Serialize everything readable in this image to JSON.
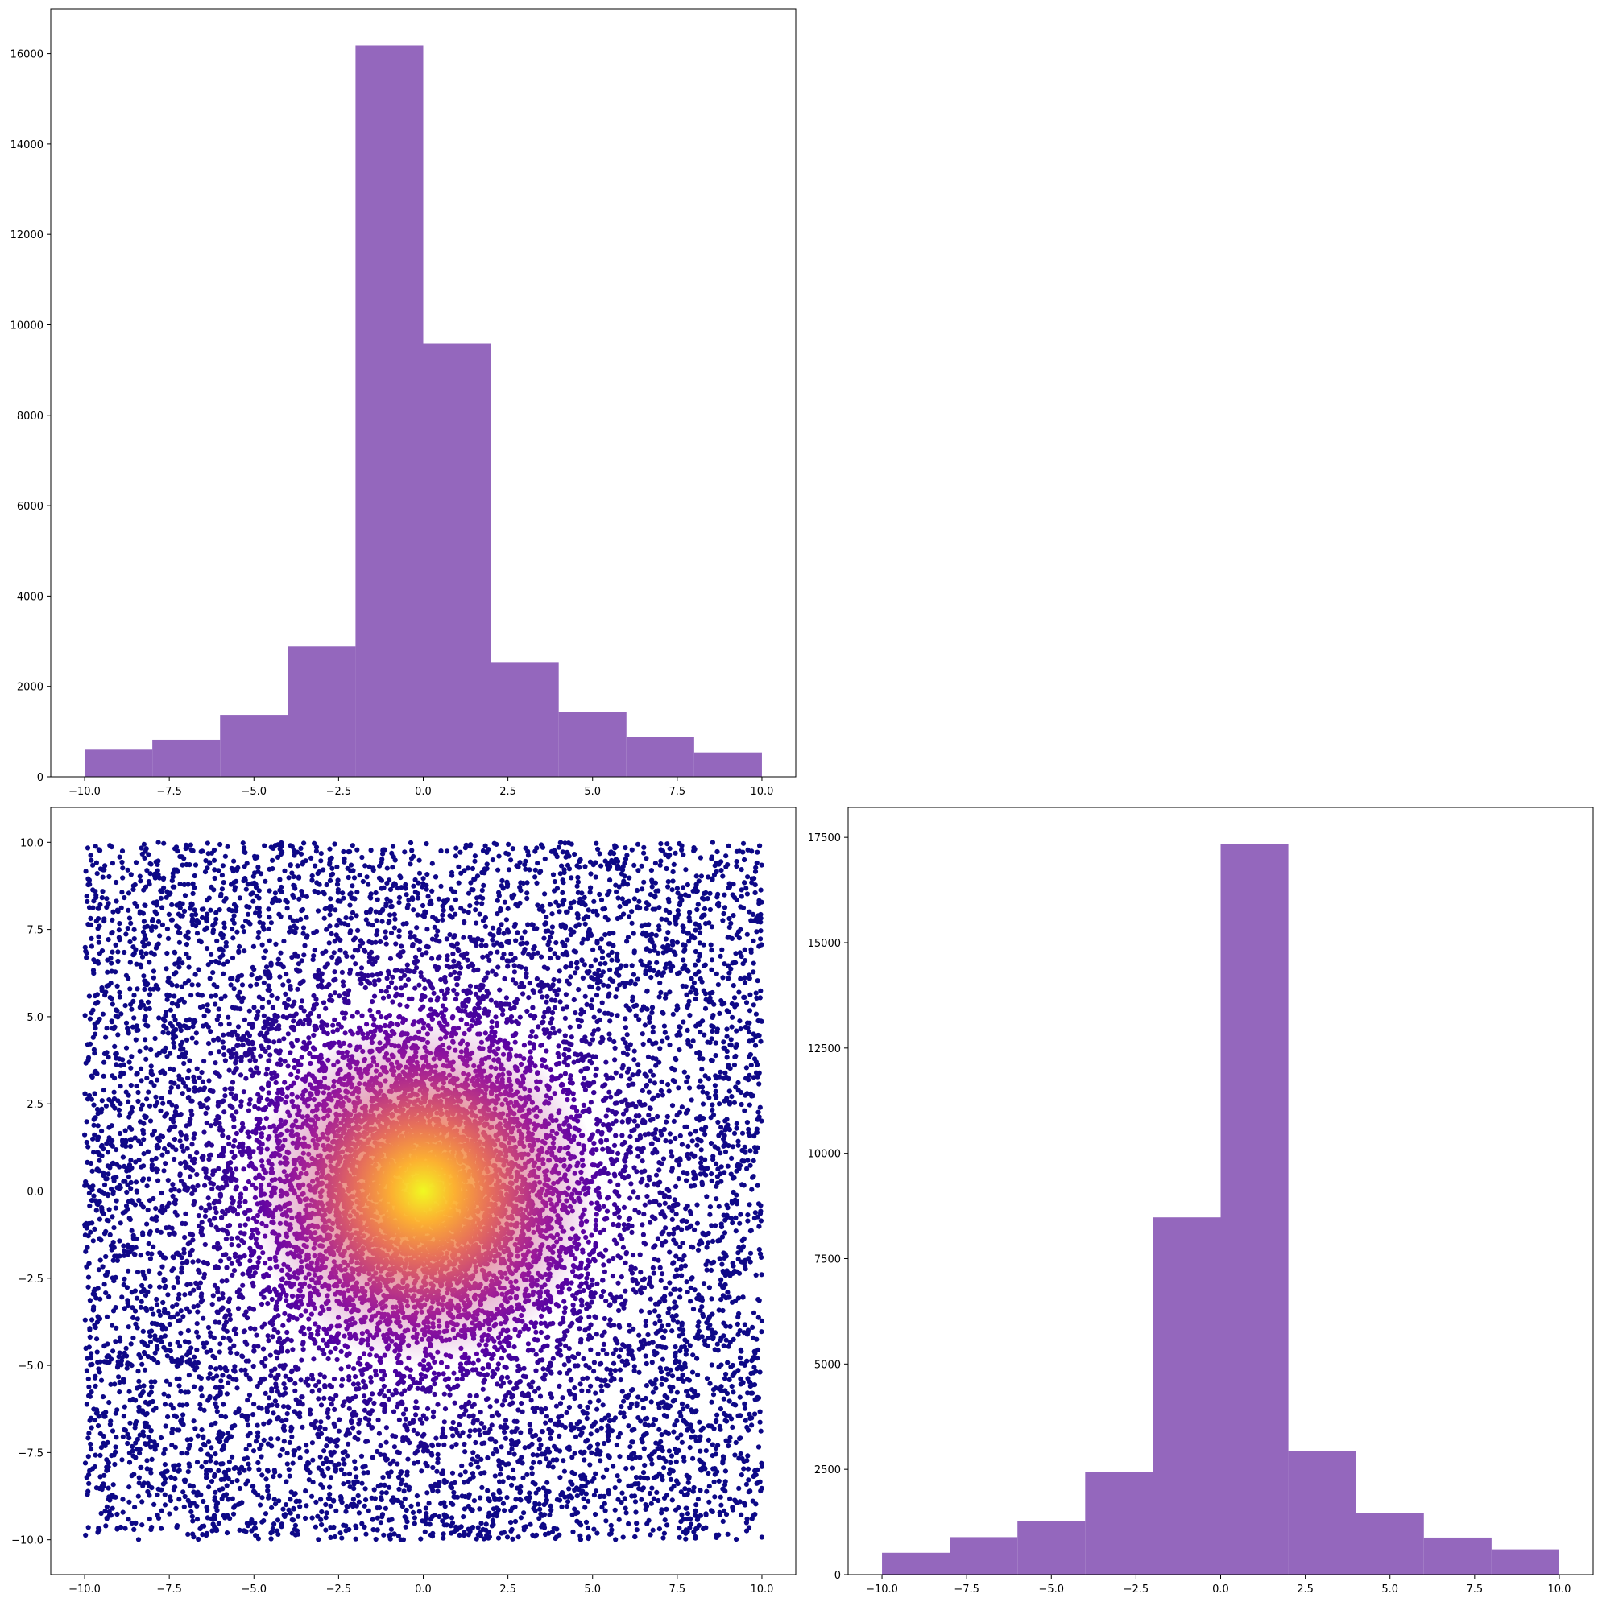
{
  "colors": {
    "bar_fill": "#9467bd",
    "scatter_colormap": "plasma",
    "scatter_low": "#1f0c8a",
    "scatter_mid": "#8f0da4",
    "scatter_high": "#f0f921",
    "axes_edge": "#000000",
    "background": "#ffffff"
  },
  "chart_data": [
    {
      "panel": "top-left",
      "type": "bar",
      "subtype": "histogram",
      "title": "",
      "xlabel": "",
      "ylabel": "",
      "bin_edges": [
        -10.0,
        -8.0,
        -6.0,
        -4.0,
        -2.0,
        0.0,
        2.0,
        4.0,
        6.0,
        8.0,
        10.0
      ],
      "values": [
        600,
        820,
        1370,
        2880,
        16180,
        9590,
        2540,
        1440,
        880,
        540
      ],
      "xlim": [
        -11.0,
        11.0
      ],
      "ylim": [
        0,
        16990
      ],
      "xticks": [
        -10.0,
        -7.5,
        -5.0,
        -2.5,
        0.0,
        2.5,
        5.0,
        7.5,
        10.0
      ],
      "xtick_labels": [
        "−10.0",
        "−7.5",
        "−5.0",
        "−2.5",
        "0.0",
        "2.5",
        "5.0",
        "7.5",
        "10.0"
      ],
      "yticks": [
        0,
        2000,
        4000,
        6000,
        8000,
        10000,
        12000,
        14000,
        16000
      ],
      "ytick_labels": [
        "0",
        "2000",
        "4000",
        "6000",
        "8000",
        "10000",
        "12000",
        "14000",
        "16000"
      ],
      "grid": false,
      "legend": "none"
    },
    {
      "panel": "bottom-left",
      "type": "scatter",
      "title": "",
      "xlabel": "",
      "ylabel": "",
      "description_of_points": "≈35000 points: a uniform background over [-10,10]×[-10,10] plus a dense gaussian core at the origin; point color follows local density with the plasma colormap (dark blue at edges to yellow at the center)",
      "uniform_background": {
        "n": 10000,
        "range": [
          -10.0,
          10.0
        ]
      },
      "gaussian_core": {
        "n": 25000,
        "center": [
          0.0,
          0.0
        ],
        "sigma": 1.6
      },
      "xlim": [
        -11.0,
        11.0
      ],
      "ylim": [
        -11.0,
        11.0
      ],
      "xticks": [
        -10.0,
        -7.5,
        -5.0,
        -2.5,
        0.0,
        2.5,
        5.0,
        7.5,
        10.0
      ],
      "xtick_labels": [
        "−10.0",
        "−7.5",
        "−5.0",
        "−2.5",
        "0.0",
        "2.5",
        "5.0",
        "7.5",
        "10.0"
      ],
      "yticks": [
        -10.0,
        -7.5,
        -5.0,
        -2.5,
        0.0,
        2.5,
        5.0,
        7.5,
        10.0
      ],
      "ytick_labels": [
        "−10.0",
        "−7.5",
        "−5.0",
        "−2.5",
        "0.0",
        "2.5",
        "5.0",
        "7.5",
        "10.0"
      ],
      "grid": false,
      "legend": "none"
    },
    {
      "panel": "bottom-right",
      "type": "bar",
      "subtype": "histogram",
      "title": "",
      "xlabel": "",
      "ylabel": "",
      "bin_edges": [
        -10.0,
        -8.0,
        -6.0,
        -4.0,
        -2.0,
        0.0,
        2.0,
        4.0,
        6.0,
        8.0,
        10.0
      ],
      "values": [
        520,
        890,
        1280,
        2430,
        8480,
        17340,
        2930,
        1460,
        880,
        600
      ],
      "xlim": [
        -11.0,
        11.0
      ],
      "ylim": [
        0,
        18210
      ],
      "xticks": [
        -10.0,
        -7.5,
        -5.0,
        -2.5,
        0.0,
        2.5,
        5.0,
        7.5,
        10.0
      ],
      "xtick_labels": [
        "−10.0",
        "−7.5",
        "−5.0",
        "−2.5",
        "0.0",
        "2.5",
        "5.0",
        "7.5",
        "10.0"
      ],
      "yticks": [
        0,
        2500,
        5000,
        7500,
        10000,
        12500,
        15000,
        17500
      ],
      "ytick_labels": [
        "0",
        "2500",
        "5000",
        "7500",
        "10000",
        "12500",
        "15000",
        "17500"
      ],
      "grid": false,
      "legend": "none"
    }
  ]
}
